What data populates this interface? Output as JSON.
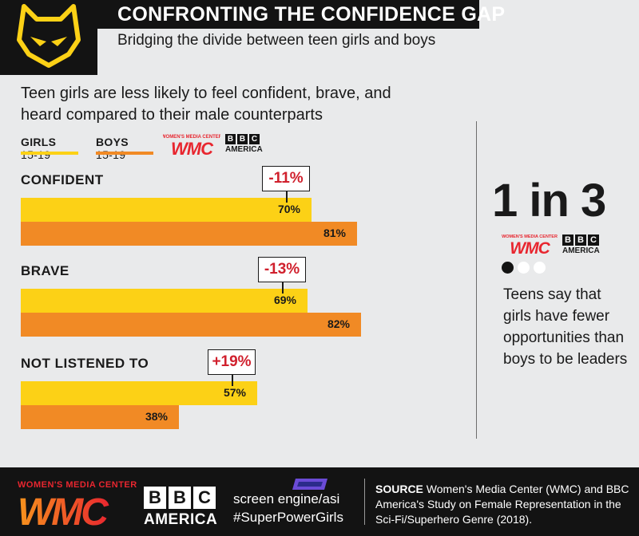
{
  "header": {
    "title": "CONFRONTING THE CONFIDENCE GAP",
    "subtitle": "Bridging the divide between teen girls and boys"
  },
  "intro": "Teen girls are less likely to feel confident, brave, and heard compared to their male counterparts",
  "legend": {
    "girls_label": "GIRLS",
    "girls_suffix": "15-19",
    "boys_label": "BOYS",
    "boys_suffix": "15-19",
    "wmc_brand": "WOMEN'S MEDIA CENTER",
    "wmc_mark": "WMC",
    "bbc_mark": "BBC",
    "bbc_sub": "AMERICA"
  },
  "colors": {
    "girls": "#fcd116",
    "boys": "#f18a25",
    "diff_text": "#d0202d",
    "wmc_red": "#e8262f",
    "wmc_orange": "#f7941d"
  },
  "chart_data": {
    "type": "bar",
    "orientation": "horizontal",
    "categories": [
      "CONFIDENT",
      "BRAVE",
      "NOT LISTENED TO"
    ],
    "series": [
      {
        "name": "GIRLS 15-19",
        "values": [
          70,
          69,
          57
        ],
        "labels": [
          "70%",
          "69%",
          "57%"
        ]
      },
      {
        "name": "BOYS 15-19",
        "values": [
          81,
          82,
          38
        ],
        "labels": [
          "81%",
          "82%",
          "38%"
        ]
      }
    ],
    "differences": [
      "-11%",
      "-13%",
      "+19%"
    ],
    "xlim": [
      0,
      100
    ],
    "grid": false,
    "legend_position": "top-left"
  },
  "side_stat": {
    "value": "1 in 3",
    "text": "Teens say that girls have fewer opportunities than boys to be leaders",
    "dots": [
      "filled",
      "empty",
      "empty"
    ]
  },
  "footer": {
    "wmc_brand": "WOMEN'S MEDIA CENTER",
    "wmc_mark": "WMC",
    "bbc_mark": "BBC",
    "bbc_sub": "AMERICA",
    "engine": "screen engine/asi",
    "hashtag": "#SuperPowerGirls",
    "source_label": "SOURCE",
    "source_text": "Women's Media Center (WMC) and BBC America's Study on Female Representation in the Sci-Fi/Superhero Genre (2018)."
  }
}
